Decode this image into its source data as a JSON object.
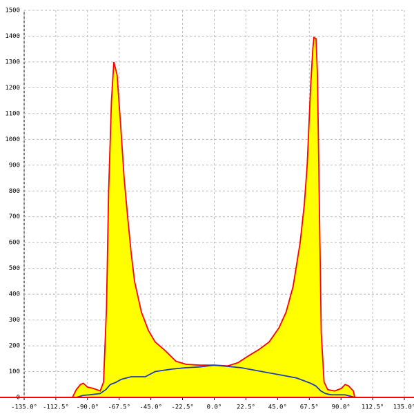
{
  "chart_data": {
    "type": "area",
    "xlim": [
      -135,
      135
    ],
    "ylim": [
      0,
      1500
    ],
    "xticks": [
      {
        "value": -135,
        "label": "-135.0°"
      },
      {
        "value": -112.5,
        "label": "-112.5°"
      },
      {
        "value": -90,
        "label": "-90.0°"
      },
      {
        "value": -67.5,
        "label": "-67.5°"
      },
      {
        "value": -45,
        "label": "-45.0°"
      },
      {
        "value": -22.5,
        "label": "-22.5°"
      },
      {
        "value": 0,
        "label": "0.0°"
      },
      {
        "value": 22.5,
        "label": "22.5°"
      },
      {
        "value": 45,
        "label": "45.0°"
      },
      {
        "value": 67.5,
        "label": "67.5°"
      },
      {
        "value": 90,
        "label": "90.0°"
      },
      {
        "value": 112.5,
        "label": "112.5°"
      },
      {
        "value": 135,
        "label": "135.0°"
      }
    ],
    "yticks": [
      0,
      100,
      200,
      300,
      400,
      500,
      600,
      700,
      800,
      900,
      1000,
      1100,
      1200,
      1300,
      1400,
      1500
    ],
    "grid": true,
    "series": [
      {
        "color": "#ff0000",
        "fill": "#ffff00",
        "x": [
          -100.7,
          -98,
          -95,
          -93,
          -90,
          -86,
          -81,
          -78.6,
          -76.5,
          -75,
          -73,
          -71.3,
          -69,
          -66.4,
          -64,
          -61.5,
          -59,
          -56.6,
          -51.7,
          -46.8,
          -42,
          -34.6,
          -27.2,
          -19.9,
          -10,
          0,
          9.6,
          17,
          24,
          31.6,
          39,
          46,
          51,
          56,
          61,
          64,
          66,
          68.4,
          70,
          70.8,
          72.3,
          73.3,
          74.5,
          76,
          78,
          80.6,
          85.5,
          90.4,
          92.9,
          95.3,
          98.8,
          99.8
        ],
        "values": [
          0,
          30,
          50,
          55,
          40,
          35,
          25,
          60,
          350,
          800,
          1150,
          1300,
          1250,
          1050,
          850,
          700,
          560,
          450,
          330,
          260,
          215,
          180,
          140,
          128,
          125,
          125,
          122,
          135,
          160,
          185,
          215,
          270,
          330,
          430,
          600,
          750,
          900,
          1200,
          1350,
          1395,
          1390,
          1250,
          800,
          250,
          60,
          30,
          25,
          35,
          50,
          45,
          25,
          0
        ]
      },
      {
        "color": "#1e3cb4",
        "x": [
          -98,
          -93,
          -88.5,
          -81,
          -77,
          -73.8,
          -70,
          -66,
          -59,
          -49,
          -42,
          -29.7,
          -19.9,
          -10,
          0,
          9.6,
          19,
          34,
          49,
          58.6,
          68.4,
          72,
          75.7,
          79,
          83,
          92.9,
          100
        ],
        "values": [
          0,
          8,
          10,
          15,
          30,
          50,
          58,
          70,
          80,
          80,
          100,
          110,
          115,
          118,
          125,
          120,
          115,
          100,
          85,
          75,
          55,
          45,
          25,
          15,
          10,
          10,
          0
        ]
      }
    ]
  }
}
